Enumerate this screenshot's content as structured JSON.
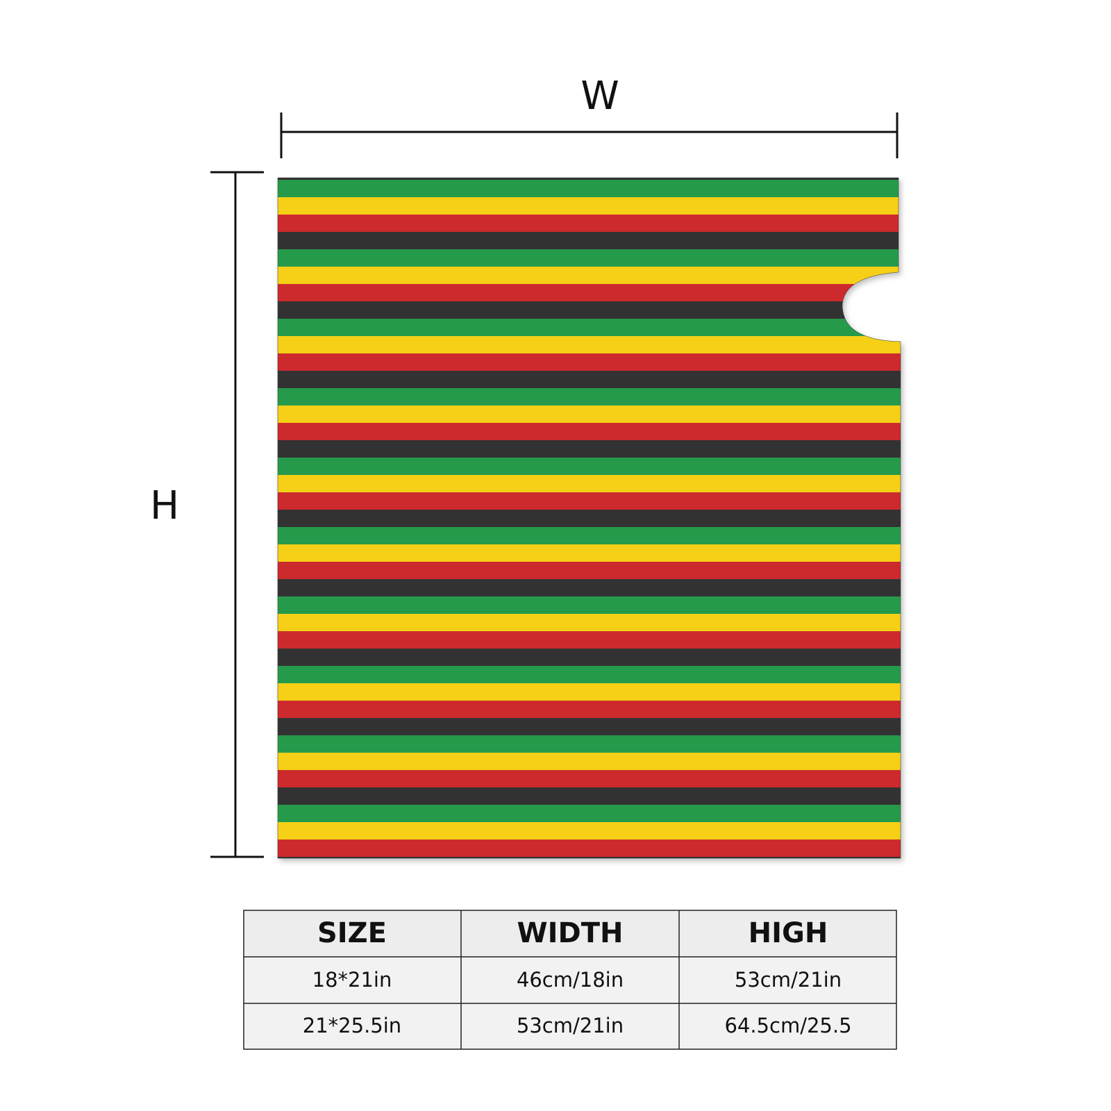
{
  "dimension_labels": {
    "width": "W",
    "height": "H"
  },
  "table": {
    "header": [
      "SIZE",
      "WIDTH",
      "HIGH"
    ],
    "rows": [
      [
        "18*21in",
        "46cm/18in",
        "53cm/21in"
      ],
      [
        "21*25.5in",
        "53cm/21in",
        "64.5cm/25.5"
      ]
    ]
  }
}
